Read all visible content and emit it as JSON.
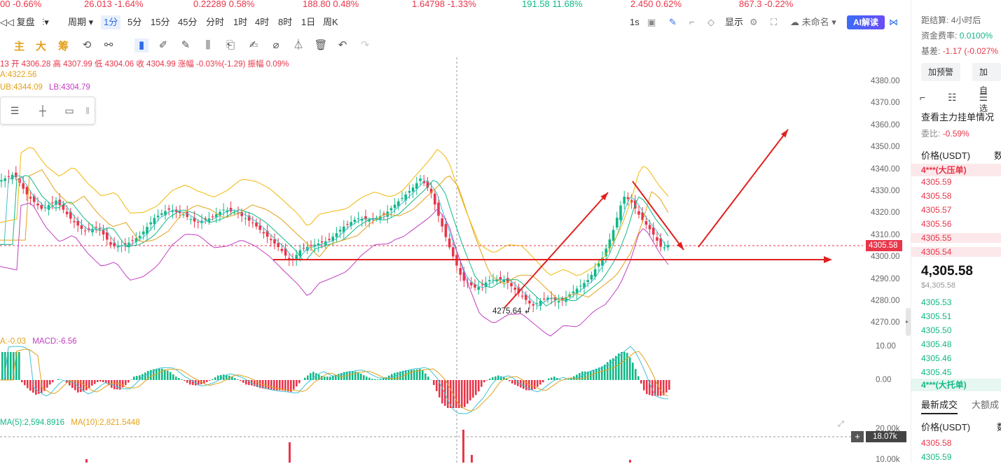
{
  "ticker": [
    {
      "text": "00  -0.66%",
      "color": "red"
    },
    {
      "text": "26.013  -1.64%",
      "color": "red"
    },
    {
      "text": "0.22289  0.58%",
      "color": "red"
    },
    {
      "text": "188.80  0.48%",
      "color": "red"
    },
    {
      "text": "1.64798  -1.33%",
      "color": "red"
    },
    {
      "text": "191.58  11.68%",
      "color": "green"
    },
    {
      "text": "2.450  0.62%",
      "color": "red"
    },
    {
      "text": "867.3  -0.22%",
      "color": "red"
    }
  ],
  "toolbar": {
    "restore": "复盘",
    "period": "周期",
    "intervals": [
      "1分",
      "5分",
      "15分",
      "45分",
      "分时",
      "1时",
      "4时",
      "8时",
      "1日",
      "周K"
    ],
    "active_interval": "1分",
    "right_1s": "1s",
    "display": "显示",
    "unnamed": "未命名",
    "ai": "AI解读"
  },
  "toolbar2": {
    "zhu": "主",
    "da": "大",
    "chou": "筹"
  },
  "info": {
    "ohlc": "13 开 4306.28 高 4307.99 低 4304.06 收 4304.99 涨幅 -0.03%(-1.29) 振幅 0.09%",
    "ma": "A:4322.56",
    "bands_ub": "UB:4344.09",
    "bands_lb": "LB:4304.79",
    "macd_dea": "A:-0.03",
    "macd_val": "MACD:-6.56",
    "vol_ma5": "MA(5):2,594.8916",
    "vol_ma10": "MA(10):2,821.5448"
  },
  "yaxis": [
    "4380.00",
    "4370.00",
    "4360.00",
    "4350.00",
    "4340.00",
    "4330.00",
    "4320.00",
    "4310.00",
    "4300.00",
    "4290.00",
    "4280.00",
    "4270.00"
  ],
  "macd_axis": [
    "10.00",
    "0.00"
  ],
  "vol_axis": [
    "20.00k",
    "10.00k"
  ],
  "current_price_tag": "4305.58",
  "vol_tag": "18.07k",
  "low_label": "4275.64",
  "colors": {
    "up": "#12b886",
    "down": "#e8364a",
    "accent": "#2d6ae3"
  },
  "right_panel": {
    "settle": "距结算:",
    "settle_val": "4小时后",
    "funding": "资金费率:",
    "funding_val": "0.0100%",
    "basis": "基差:",
    "basis_val": "-1.17 (-0.027%",
    "alert_btn": "加预警",
    "add_btn": "加自选",
    "view_orders": "查看主力挂单情况",
    "ratio": "委比:",
    "ratio_val": "-0.59%",
    "price_header": "价格(USDT)",
    "qty_header": "数",
    "sell_big": "4***(大压单)",
    "asks": [
      "4305.59",
      "4305.58",
      "4305.57",
      "4305.56",
      "4305.55",
      "4305.54"
    ],
    "last": "4,305.58",
    "last_usd": "$4,305.58",
    "bids": [
      "4305.53",
      "4305.51",
      "4305.50",
      "4305.48",
      "4305.46",
      "4305.45"
    ],
    "buy_big": "4***(大托单)",
    "tab_latest": "最新成交",
    "tab_big": "大额成",
    "trade_header": "价格(USDT)",
    "trade_qty": "数",
    "trades": [
      "4305.58",
      "4305.59"
    ]
  }
}
